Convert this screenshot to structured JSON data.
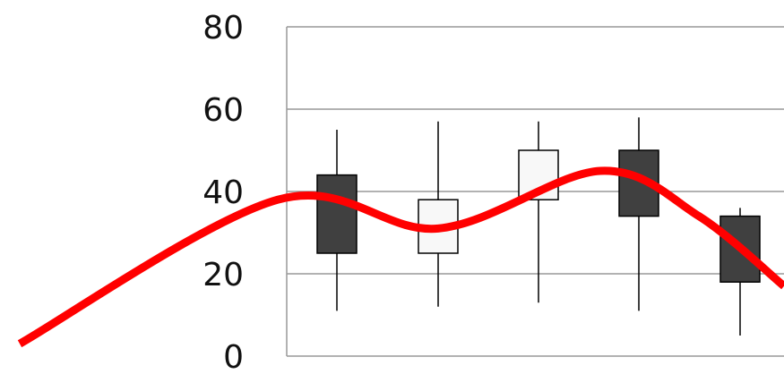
{
  "chart_data": {
    "type": "candlestick",
    "y_ticks": [
      "0",
      "20",
      "40",
      "60",
      "80"
    ],
    "ylim": [
      0,
      80
    ],
    "grid": true,
    "candles": [
      {
        "open": 44,
        "high": 55,
        "low": 11,
        "close": 25,
        "direction": "down"
      },
      {
        "open": 25,
        "high": 57,
        "low": 12,
        "close": 38,
        "direction": "up"
      },
      {
        "open": 38,
        "high": 57,
        "low": 13,
        "close": 50,
        "direction": "up"
      },
      {
        "open": 50,
        "high": 58,
        "low": 11,
        "close": 34,
        "direction": "down"
      },
      {
        "open": 34,
        "high": 36,
        "low": 5,
        "close": 18,
        "direction": "down"
      }
    ],
    "trend_line": {
      "color": "#ff0000",
      "y": [
        3,
        38,
        31,
        45,
        34,
        17
      ]
    },
    "colors": {
      "down": "#404040",
      "up": "#f8f8f8",
      "outline": "#000000",
      "grid": "#999999",
      "axis": "#999999"
    }
  }
}
